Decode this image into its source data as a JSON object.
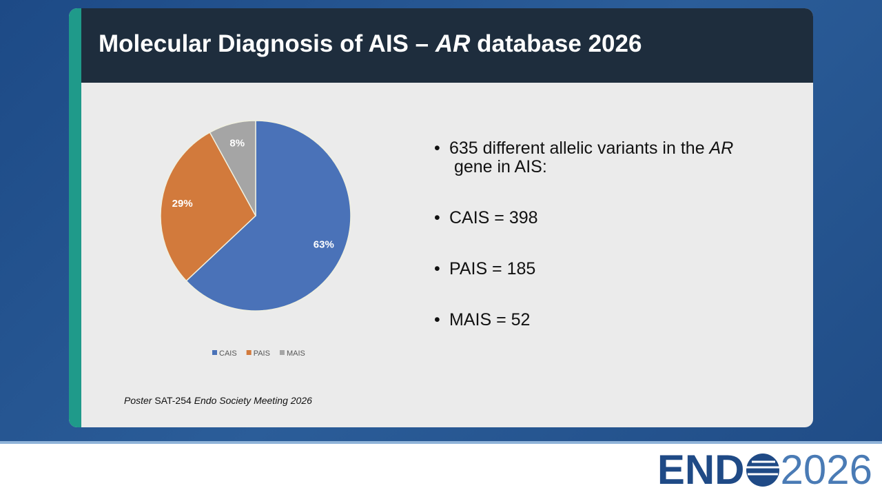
{
  "title": {
    "parts": [
      "Molecular Diagnosis of AIS – ",
      "AR",
      " database 2026"
    ]
  },
  "chart_data": {
    "type": "pie",
    "categories": [
      "CAIS",
      "PAIS",
      "MAIS"
    ],
    "values": [
      63,
      29,
      8
    ],
    "value_labels": [
      "63%",
      "29%",
      "8%"
    ],
    "colors": [
      "#4a72b8",
      "#d27a3c",
      "#a5a5a5"
    ]
  },
  "bullets": [
    [
      "635 different allelic variants in the ",
      "AR",
      " gene in AIS:"
    ],
    [
      "CAIS = 398"
    ],
    [
      "PAIS = 185"
    ],
    [
      "MAIS = 52"
    ]
  ],
  "footnote": [
    "Poster",
    " SAT-254 ",
    "Endo Society Meeting 2026"
  ],
  "logo": {
    "left": "END",
    "right": "2026"
  }
}
